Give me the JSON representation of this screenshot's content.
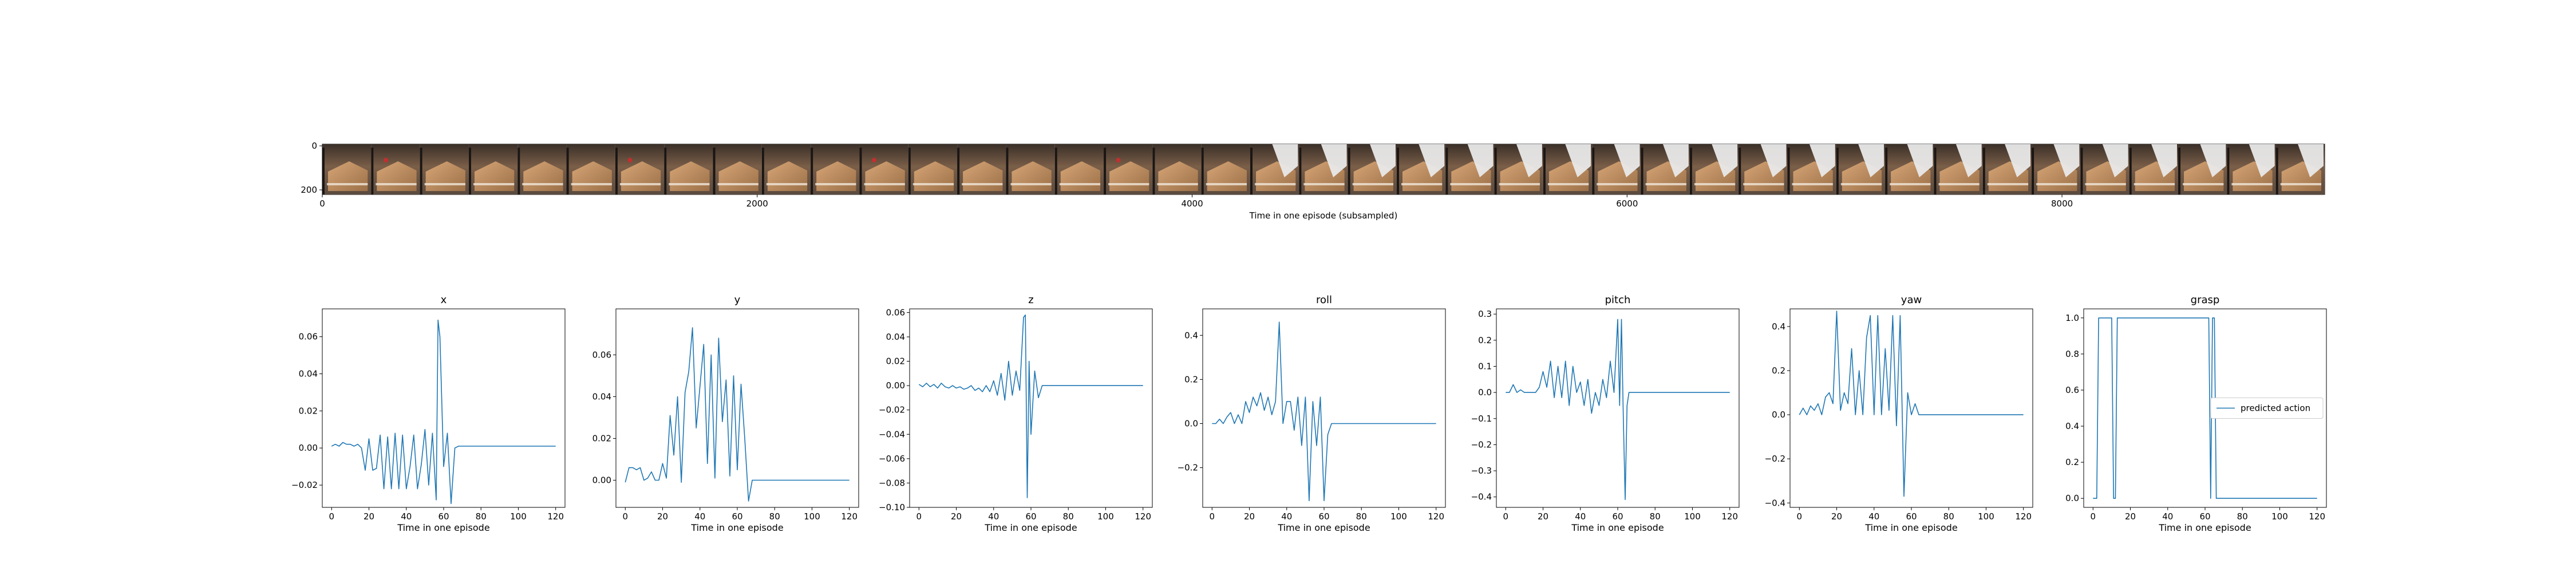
{
  "strip": {
    "xlabel": "Time in one episode (subsampled)",
    "xticks": [
      "0",
      "2000",
      "4000",
      "6000",
      "8000"
    ],
    "yticks": [
      "0",
      "200"
    ],
    "frame_count": 41
  },
  "chart_data": [
    {
      "type": "line",
      "title": "x",
      "xlabel": "Time in one episode",
      "ylabel": "",
      "xlim": [
        -5,
        125
      ],
      "ylim": [
        -0.032,
        0.075
      ],
      "xticks": [
        0,
        20,
        40,
        60,
        80,
        100,
        120
      ],
      "yticks": [
        -0.02,
        0.0,
        0.02,
        0.04,
        0.06
      ],
      "ytick_labels": [
        "−0.02",
        "0.00",
        "0.02",
        "0.04",
        "0.06"
      ],
      "series": [
        {
          "color": "#1f77b4",
          "x": [
            0,
            2,
            4,
            6,
            8,
            10,
            12,
            14,
            16,
            18,
            20,
            22,
            24,
            26,
            28,
            30,
            32,
            34,
            36,
            38,
            40,
            42,
            44,
            46,
            48,
            50,
            52,
            54,
            56,
            57,
            58,
            60,
            62,
            64,
            66,
            68,
            70,
            75,
            80,
            90,
            100,
            110,
            120
          ],
          "y": [
            0.001,
            0.002,
            0.001,
            0.003,
            0.002,
            0.002,
            0.001,
            0.002,
            0.0,
            -0.012,
            0.005,
            -0.012,
            -0.011,
            0.007,
            -0.022,
            0.006,
            -0.022,
            0.008,
            -0.022,
            0.007,
            -0.022,
            -0.01,
            0.007,
            -0.022,
            -0.009,
            0.01,
            -0.02,
            0.008,
            -0.028,
            0.069,
            0.06,
            -0.01,
            0.008,
            -0.03,
            0.0,
            0.001,
            0.001,
            0.001,
            0.001,
            0.001,
            0.001,
            0.001,
            0.001
          ]
        }
      ]
    },
    {
      "type": "line",
      "title": "y",
      "xlabel": "Time in one episode",
      "ylabel": "",
      "xlim": [
        -5,
        125
      ],
      "ylim": [
        -0.013,
        0.082
      ],
      "xticks": [
        0,
        20,
        40,
        60,
        80,
        100,
        120
      ],
      "yticks": [
        0.0,
        0.02,
        0.04,
        0.06
      ],
      "ytick_labels": [
        "0.00",
        "0.02",
        "0.04",
        "0.06"
      ],
      "series": [
        {
          "color": "#1f77b4",
          "x": [
            0,
            2,
            4,
            6,
            8,
            10,
            12,
            14,
            16,
            18,
            20,
            22,
            24,
            26,
            28,
            30,
            32,
            34,
            36,
            38,
            40,
            42,
            44,
            46,
            48,
            50,
            52,
            54,
            56,
            58,
            60,
            62,
            64,
            66,
            68,
            70,
            80,
            90,
            100,
            110,
            120
          ],
          "y": [
            -0.001,
            0.006,
            0.006,
            0.005,
            0.006,
            0.0,
            0.001,
            0.004,
            0.0,
            0.0,
            0.008,
            0.001,
            0.031,
            0.012,
            0.04,
            -0.001,
            0.042,
            0.052,
            0.073,
            0.025,
            0.045,
            0.065,
            0.008,
            0.06,
            0.001,
            0.068,
            0.028,
            0.048,
            0.002,
            0.05,
            0.005,
            0.046,
            0.02,
            -0.01,
            0.0,
            0.0,
            0.0,
            0.0,
            0.0,
            0.0,
            0.0
          ]
        }
      ]
    },
    {
      "type": "line",
      "title": "z",
      "xlabel": "Time in one episode",
      "ylabel": "",
      "xlim": [
        -5,
        125
      ],
      "ylim": [
        -0.1,
        0.063
      ],
      "xticks": [
        0,
        20,
        40,
        60,
        80,
        100,
        120
      ],
      "yticks": [
        -0.1,
        -0.08,
        -0.06,
        -0.04,
        -0.02,
        0.0,
        0.02,
        0.04,
        0.06
      ],
      "ytick_labels": [
        "−0.10",
        "−0.08",
        "−0.06",
        "−0.04",
        "−0.02",
        "0.00",
        "0.02",
        "0.04",
        "0.06"
      ],
      "series": [
        {
          "color": "#1f77b4",
          "x": [
            0,
            2,
            4,
            6,
            8,
            10,
            12,
            14,
            16,
            18,
            20,
            22,
            24,
            26,
            28,
            30,
            32,
            34,
            36,
            38,
            40,
            42,
            44,
            46,
            48,
            50,
            52,
            54,
            56,
            57,
            58,
            59,
            60,
            62,
            64,
            66,
            70,
            80,
            90,
            100,
            110,
            120
          ],
          "y": [
            0.001,
            -0.001,
            0.002,
            -0.001,
            0.001,
            -0.002,
            0.002,
            -0.001,
            -0.002,
            0.0,
            -0.002,
            -0.001,
            -0.003,
            -0.002,
            0.0,
            -0.004,
            -0.002,
            -0.005,
            0.0,
            -0.005,
            0.004,
            -0.008,
            0.01,
            -0.012,
            0.02,
            -0.008,
            0.012,
            -0.004,
            0.056,
            0.058,
            -0.092,
            0.02,
            -0.04,
            0.012,
            -0.01,
            0.0,
            0.0,
            0.0,
            0.0,
            0.0,
            0.0,
            0.0
          ]
        }
      ]
    },
    {
      "type": "line",
      "title": "roll",
      "xlabel": "Time in one episode",
      "ylabel": "",
      "xlim": [
        -5,
        125
      ],
      "ylim": [
        -0.38,
        0.52
      ],
      "xticks": [
        0,
        20,
        40,
        60,
        80,
        100,
        120
      ],
      "yticks": [
        -0.2,
        0.0,
        0.2,
        0.4
      ],
      "ytick_labels": [
        "−0.2",
        "0.0",
        "0.2",
        "0.4"
      ],
      "series": [
        {
          "color": "#1f77b4",
          "x": [
            0,
            2,
            4,
            6,
            8,
            10,
            12,
            14,
            16,
            18,
            20,
            22,
            24,
            26,
            28,
            30,
            32,
            34,
            36,
            38,
            40,
            42,
            44,
            46,
            48,
            50,
            52,
            54,
            56,
            58,
            60,
            62,
            64,
            66,
            68,
            70,
            80,
            90,
            100,
            110,
            120
          ],
          "y": [
            0.0,
            0.0,
            0.02,
            0.0,
            0.03,
            0.05,
            0.0,
            0.04,
            0.0,
            0.1,
            0.05,
            0.12,
            0.08,
            0.14,
            0.06,
            0.12,
            0.04,
            0.1,
            0.46,
            0.0,
            0.1,
            0.1,
            -0.03,
            0.12,
            -0.1,
            0.12,
            -0.35,
            0.1,
            -0.1,
            0.12,
            -0.35,
            -0.05,
            0.0,
            0.0,
            0.0,
            0.0,
            0.0,
            0.0,
            0.0,
            0.0,
            0.0
          ]
        }
      ]
    },
    {
      "type": "line",
      "title": "pitch",
      "xlabel": "Time in one episode",
      "ylabel": "",
      "xlim": [
        -5,
        125
      ],
      "ylim": [
        -0.44,
        0.32
      ],
      "xticks": [
        0,
        20,
        40,
        60,
        80,
        100,
        120
      ],
      "yticks": [
        -0.4,
        -0.3,
        -0.2,
        -0.1,
        0.0,
        0.1,
        0.2,
        0.3
      ],
      "ytick_labels": [
        "−0.4",
        "−0.3",
        "−0.2",
        "−0.1",
        "0.0",
        "0.1",
        "0.2",
        "0.3"
      ],
      "series": [
        {
          "color": "#1f77b4",
          "x": [
            0,
            2,
            4,
            6,
            8,
            10,
            12,
            14,
            16,
            18,
            20,
            22,
            24,
            26,
            28,
            30,
            32,
            34,
            36,
            38,
            40,
            42,
            44,
            46,
            48,
            50,
            52,
            54,
            56,
            58,
            60,
            61,
            62,
            63,
            64,
            65,
            66,
            70,
            80,
            90,
            100,
            110,
            120
          ],
          "y": [
            0.0,
            0.0,
            0.03,
            0.0,
            0.01,
            0.0,
            0.0,
            0.0,
            0.0,
            0.02,
            0.08,
            0.02,
            0.12,
            -0.02,
            0.1,
            -0.02,
            0.12,
            -0.05,
            0.1,
            0.0,
            0.04,
            -0.05,
            0.05,
            -0.08,
            0.0,
            -0.05,
            0.05,
            -0.02,
            0.12,
            0.0,
            0.28,
            -0.05,
            0.28,
            -0.1,
            -0.41,
            -0.05,
            0.0,
            0.0,
            0.0,
            0.0,
            0.0,
            0.0,
            0.0
          ]
        }
      ]
    },
    {
      "type": "line",
      "title": "yaw",
      "xlabel": "Time in one episode",
      "ylabel": "",
      "xlim": [
        -5,
        125
      ],
      "ylim": [
        -0.42,
        0.48
      ],
      "xticks": [
        0,
        20,
        40,
        60,
        80,
        100,
        120
      ],
      "yticks": [
        -0.4,
        -0.2,
        0.0,
        0.2,
        0.4
      ],
      "ytick_labels": [
        "−0.4",
        "−0.2",
        "0.0",
        "0.2",
        "0.4"
      ],
      "series": [
        {
          "color": "#1f77b4",
          "x": [
            0,
            2,
            4,
            6,
            8,
            10,
            12,
            14,
            16,
            18,
            20,
            22,
            24,
            26,
            28,
            30,
            32,
            34,
            36,
            38,
            40,
            42,
            44,
            46,
            48,
            50,
            52,
            54,
            56,
            58,
            60,
            62,
            64,
            66,
            70,
            80,
            90,
            100,
            110,
            120
          ],
          "y": [
            0.0,
            0.03,
            0.0,
            0.04,
            0.02,
            0.05,
            0.0,
            0.08,
            0.1,
            0.05,
            0.47,
            0.02,
            0.1,
            0.05,
            0.3,
            0.0,
            0.2,
            0.0,
            0.35,
            0.45,
            0.0,
            0.45,
            0.0,
            0.3,
            0.02,
            0.45,
            -0.05,
            0.45,
            -0.37,
            0.1,
            0.0,
            0.05,
            0.0,
            0.0,
            0.0,
            0.0,
            0.0,
            0.0,
            0.0,
            0.0
          ]
        }
      ]
    },
    {
      "type": "line",
      "title": "grasp",
      "xlabel": "Time in one episode",
      "ylabel": "",
      "legend": {
        "labels": [
          "predicted action"
        ],
        "loc": "center right"
      },
      "xlim": [
        -5,
        125
      ],
      "ylim": [
        -0.05,
        1.05
      ],
      "xticks": [
        0,
        20,
        40,
        60,
        80,
        100,
        120
      ],
      "yticks": [
        0.0,
        0.2,
        0.4,
        0.6,
        0.8,
        1.0
      ],
      "ytick_labels": [
        "0.0",
        "0.2",
        "0.4",
        "0.6",
        "0.8",
        "1.0"
      ],
      "series": [
        {
          "name": "predicted action",
          "color": "#1f77b4",
          "x": [
            0,
            2,
            3,
            10,
            11,
            12,
            13,
            14,
            62,
            63,
            64,
            65,
            66,
            67,
            120
          ],
          "y": [
            0.0,
            0.0,
            1.0,
            1.0,
            0.0,
            0.0,
            1.0,
            1.0,
            1.0,
            0.0,
            1.0,
            1.0,
            0.0,
            0.0,
            0.0
          ]
        }
      ]
    }
  ]
}
